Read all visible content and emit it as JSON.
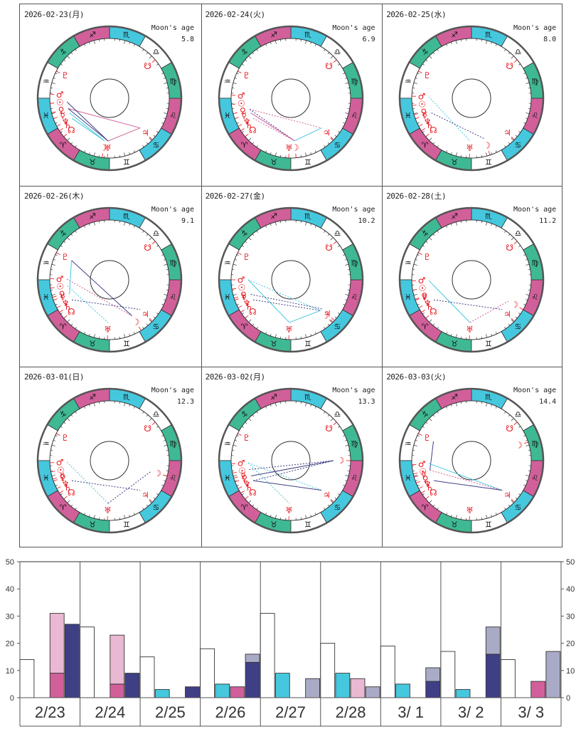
{
  "colors": {
    "pink": "#d1609a",
    "pink_light": "#e9b8d2",
    "cyan": "#45c8de",
    "green": "#3fb994",
    "white": "#ffffff",
    "navy": "#3f3f86",
    "navy_light": "#a9abc6",
    "planet_red": "#e8141c",
    "ring_border": "#555555"
  },
  "zodiac": [
    {
      "name": "aries",
      "glyph": "♈",
      "color": "pink"
    },
    {
      "name": "taurus",
      "glyph": "♉",
      "color": "green"
    },
    {
      "name": "gemini",
      "glyph": "♊",
      "color": "white"
    },
    {
      "name": "cancer",
      "glyph": "♋",
      "color": "cyan"
    },
    {
      "name": "leo",
      "glyph": "♌",
      "color": "pink"
    },
    {
      "name": "virgo",
      "glyph": "♍",
      "color": "green"
    },
    {
      "name": "libra",
      "glyph": "♎",
      "color": "white"
    },
    {
      "name": "scorpio",
      "glyph": "♏",
      "color": "cyan"
    },
    {
      "name": "sagittarius",
      "glyph": "♐",
      "color": "pink"
    },
    {
      "name": "capricorn",
      "glyph": "♑",
      "color": "green"
    },
    {
      "name": "aquarius",
      "glyph": "♒",
      "color": "white"
    },
    {
      "name": "pisces",
      "glyph": "♓",
      "color": "cyan"
    }
  ],
  "planet_glyphs": {
    "sun": "☉",
    "moon": "☽",
    "mercury": "☿",
    "venus": "♀",
    "mars": "♂",
    "jupiter": "♃",
    "saturn": "♄",
    "uranus": "♅",
    "neptune": "♆",
    "pluto": "♇",
    "node": "☊",
    "south_node": "☋"
  },
  "moon_age_label": "Moon's age",
  "charts": [
    {
      "date": "2026-02-23(月)",
      "moon_age": "5.8",
      "planets": {
        "pluto": 303,
        "mars": 326,
        "sun": 335,
        "venus": 344,
        "mercury": 350,
        "neptune": 358,
        "saturn": 3,
        "node": 10,
        "moon": 53,
        "uranus": 58,
        "jupiter": 106,
        "south_node": 190
      },
      "aspects": [
        [
          "venus",
          "jupiter",
          "pink",
          "solid"
        ],
        [
          "jupiter",
          "uranus",
          "pink",
          "solid"
        ],
        [
          "sun",
          "uranus",
          "navy",
          "solid"
        ],
        [
          "venus",
          "uranus",
          "navy",
          "solid"
        ],
        [
          "mercury",
          "moon",
          "cyan",
          "solid"
        ],
        [
          "neptune",
          "moon",
          "cyan",
          "solid"
        ]
      ]
    },
    {
      "date": "2026-02-24(火)",
      "moon_age": "6.9",
      "planets": {
        "pluto": 303,
        "mars": 327,
        "sun": 336,
        "venus": 345,
        "mercury": 350,
        "neptune": 358,
        "saturn": 3,
        "node": 10,
        "uranus": 58,
        "moon": 65,
        "jupiter": 106,
        "south_node": 190
      },
      "aspects": [
        [
          "venus",
          "jupiter",
          "pink",
          "dashed"
        ],
        [
          "venus",
          "moon",
          "navy",
          "dashed"
        ],
        [
          "mercury",
          "moon",
          "pink",
          "solid"
        ],
        [
          "neptune",
          "moon",
          "pink",
          "dashed"
        ],
        [
          "moon",
          "jupiter",
          "cyan",
          "solid"
        ]
      ]
    },
    {
      "date": "2026-02-25(水)",
      "moon_age": "8.0",
      "planets": {
        "pluto": 303,
        "mars": 328,
        "sun": 337,
        "venus": 346,
        "mercury": 350,
        "neptune": 358,
        "saturn": 3,
        "node": 10,
        "uranus": 58,
        "moon": 78,
        "jupiter": 106,
        "south_node": 190
      },
      "aspects": [
        [
          "mars",
          "uranus",
          "cyan",
          "dashed"
        ],
        [
          "mercury",
          "moon",
          "navy",
          "dashed"
        ]
      ]
    },
    {
      "date": "2026-02-26(木)",
      "moon_age": "9.1",
      "planets": {
        "pluto": 303,
        "mars": 329,
        "sun": 338,
        "venus": 347,
        "mercury": 350,
        "neptune": 358,
        "saturn": 3,
        "node": 10,
        "uranus": 58,
        "moon": 92,
        "jupiter": 106,
        "south_node": 190
      },
      "aspects": [
        [
          "pluto",
          "moon",
          "navy",
          "solid"
        ],
        [
          "pluto",
          "mercury",
          "cyan",
          "solid"
        ],
        [
          "mars",
          "moon",
          "pink",
          "dashed"
        ],
        [
          "sun",
          "uranus",
          "cyan",
          "dashed"
        ],
        [
          "neptune",
          "jupiter",
          "navy",
          "dashed"
        ]
      ]
    },
    {
      "date": "2026-02-27(金)",
      "moon_age": "10.2",
      "planets": {
        "pluto": 303,
        "mars": 330,
        "sun": 339,
        "venus": 348,
        "mercury": 350,
        "neptune": 358,
        "saturn": 3,
        "node": 10,
        "uranus": 58,
        "moon": 104,
        "jupiter": 107,
        "south_node": 190
      },
      "aspects": [
        [
          "mars",
          "uranus",
          "cyan",
          "solid"
        ],
        [
          "uranus",
          "moon",
          "cyan",
          "solid"
        ],
        [
          "mars",
          "moon",
          "cyan",
          "dashed"
        ],
        [
          "mercury",
          "jupiter",
          "navy",
          "dashed"
        ],
        [
          "neptune",
          "moon",
          "navy",
          "dashed"
        ]
      ]
    },
    {
      "date": "2026-02-28(土)",
      "moon_age": "11.2",
      "planets": {
        "pluto": 303,
        "mars": 331,
        "sun": 340,
        "venus": 349,
        "mercury": 350,
        "neptune": 358,
        "saturn": 3,
        "node": 10,
        "uranus": 58,
        "jupiter": 106,
        "moon": 120,
        "south_node": 190
      },
      "aspects": [
        [
          "mars",
          "uranus",
          "cyan",
          "solid"
        ],
        [
          "uranus",
          "moon",
          "pink",
          "dashed"
        ],
        [
          "neptune",
          "jupiter",
          "navy",
          "dashed"
        ]
      ]
    },
    {
      "date": "2026-03-01(日)",
      "moon_age": "12.3",
      "planets": {
        "pluto": 303,
        "mars": 332,
        "sun": 341,
        "mercury": 348,
        "venus": 350,
        "neptune": 358,
        "saturn": 3,
        "node": 10,
        "uranus": 58,
        "jupiter": 106,
        "moon": 135,
        "south_node": 190
      },
      "aspects": [
        [
          "mars",
          "uranus",
          "cyan",
          "dashed"
        ],
        [
          "uranus",
          "moon",
          "navy",
          "dashed"
        ],
        [
          "neptune",
          "jupiter",
          "navy",
          "dashed"
        ]
      ]
    },
    {
      "date": "2026-03-02(月)",
      "moon_age": "13.3",
      "planets": {
        "pluto": 303,
        "mars": 333,
        "sun": 342,
        "mercury": 347,
        "venus": 351,
        "neptune": 358,
        "saturn": 3,
        "node": 10,
        "uranus": 58,
        "jupiter": 106,
        "moon": 150,
        "south_node": 190
      },
      "aspects": [
        [
          "mars",
          "jupiter",
          "cyan",
          "dashed"
        ],
        [
          "mars",
          "uranus",
          "cyan",
          "dashed"
        ],
        [
          "sun",
          "moon",
          "navy",
          "dashed"
        ],
        [
          "venus",
          "moon",
          "navy",
          "solid"
        ],
        [
          "neptune",
          "moon",
          "navy",
          "dashed"
        ],
        [
          "neptune",
          "jupiter",
          "navy",
          "solid"
        ]
      ]
    },
    {
      "date": "2026-03-03(火)",
      "moon_age": "14.4",
      "planets": {
        "pluto": 303,
        "mars": 334,
        "sun": 343,
        "mercury": 346,
        "venus": 352,
        "neptune": 358,
        "saturn": 3,
        "node": 10,
        "uranus": 58,
        "jupiter": 106,
        "moon": 168,
        "south_node": 190
      },
      "aspects": [
        [
          "pluto",
          "sun",
          "navy",
          "solid"
        ],
        [
          "mars",
          "jupiter",
          "cyan",
          "solid"
        ],
        [
          "sun",
          "jupiter",
          "pink",
          "dashed"
        ],
        [
          "neptune",
          "jupiter",
          "navy",
          "solid"
        ]
      ]
    }
  ],
  "chart_data": {
    "type": "bar",
    "title": "",
    "xlabel": "",
    "ylabel": "",
    "ylim": [
      0,
      50
    ],
    "yticks": [
      0,
      10,
      20,
      30,
      40,
      50
    ],
    "grid": false,
    "categories": [
      "2/23",
      "2/24",
      "2/25",
      "2/26",
      "2/27",
      "2/28",
      "3/ 1",
      "3/ 2",
      "3/ 3"
    ],
    "series": [
      {
        "name": "white",
        "color": "white",
        "values": [
          14,
          26,
          15,
          18,
          31,
          20,
          19,
          17,
          14
        ]
      },
      {
        "name": "cyan",
        "color": "cyan",
        "values": [
          0,
          0,
          3,
          5,
          9,
          9,
          5,
          3,
          0
        ]
      },
      {
        "name": "pink",
        "color": "pink",
        "values": [
          9,
          5,
          0,
          4,
          0,
          0,
          0,
          0,
          6
        ]
      },
      {
        "name": "pink-light",
        "color": "pink_light",
        "stack_on": "pink",
        "values": [
          22,
          18,
          0,
          0,
          0,
          7,
          0,
          0,
          0
        ]
      },
      {
        "name": "navy",
        "color": "navy",
        "values": [
          27,
          9,
          4,
          13,
          0,
          0,
          6,
          16,
          0
        ]
      },
      {
        "name": "navy-light",
        "color": "navy_light",
        "stack_on": "navy",
        "values": [
          0,
          0,
          0,
          3,
          7,
          4,
          5,
          10,
          17
        ]
      }
    ]
  }
}
